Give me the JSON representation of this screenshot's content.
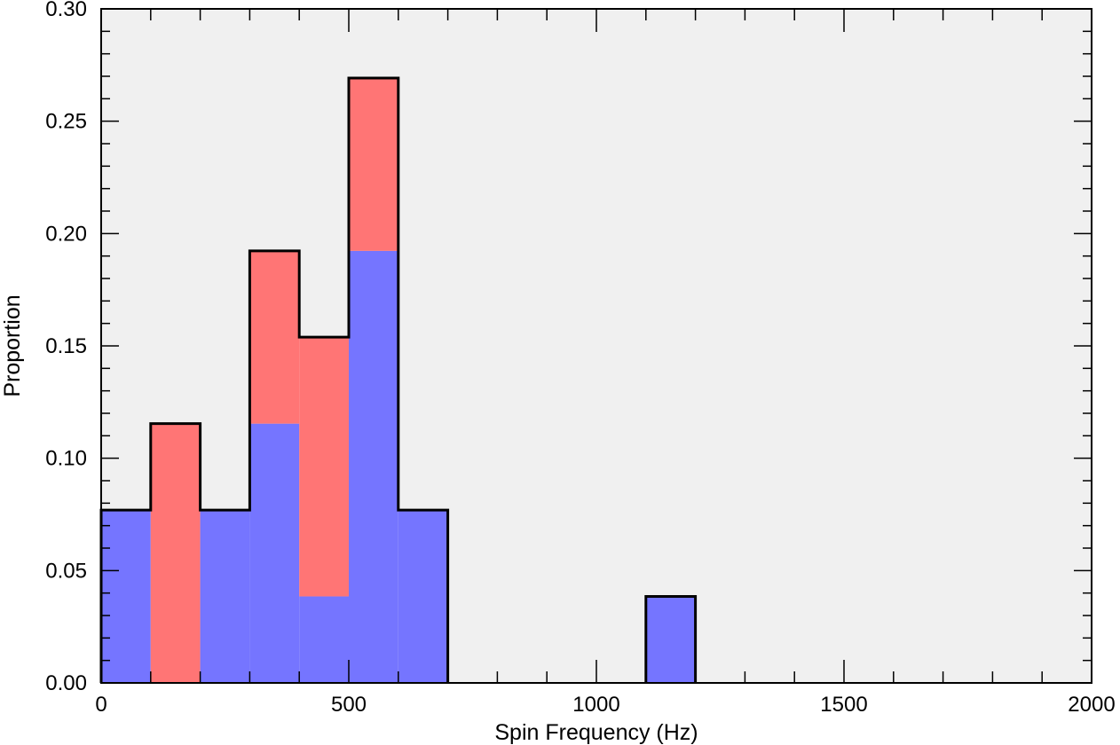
{
  "chart_data": {
    "type": "bar",
    "stacked": true,
    "title": "",
    "xlabel": "Spin Frequency (Hz)",
    "ylabel": "Proportion",
    "xlim": [
      0,
      2000
    ],
    "ylim": [
      0,
      0.3
    ],
    "bin_width": 100,
    "x_ticks": [
      0,
      500,
      1000,
      1500,
      2000
    ],
    "x_tick_labels": [
      "0",
      "500",
      "1000",
      "1500",
      "2000"
    ],
    "x_minor_step": 100,
    "y_ticks": [
      0,
      0.05,
      0.1,
      0.15,
      0.2,
      0.25,
      0.3
    ],
    "y_tick_labels": [
      "0.00",
      "0.05",
      "0.10",
      "0.15",
      "0.20",
      "0.25",
      "0.30"
    ],
    "y_minor_step": 0.01,
    "grid": false,
    "colors": {
      "background": "#f0f0f0",
      "blue": "#7575ff",
      "red": "#ff7575",
      "outline": "#000000"
    },
    "bins": [
      {
        "x0": 0,
        "x1": 100,
        "blue": 0.0769,
        "red": 0
      },
      {
        "x0": 100,
        "x1": 200,
        "blue": 0,
        "red": 0.1154
      },
      {
        "x0": 200,
        "x1": 300,
        "blue": 0.0769,
        "red": 0
      },
      {
        "x0": 300,
        "x1": 400,
        "blue": 0.1154,
        "red": 0.0769
      },
      {
        "x0": 400,
        "x1": 500,
        "blue": 0.0385,
        "red": 0.1154
      },
      {
        "x0": 500,
        "x1": 600,
        "blue": 0.1923,
        "red": 0.0769
      },
      {
        "x0": 600,
        "x1": 700,
        "blue": 0.0769,
        "red": 0
      },
      {
        "x0": 1100,
        "x1": 1200,
        "blue": 0.0385,
        "red": 0
      }
    ]
  }
}
